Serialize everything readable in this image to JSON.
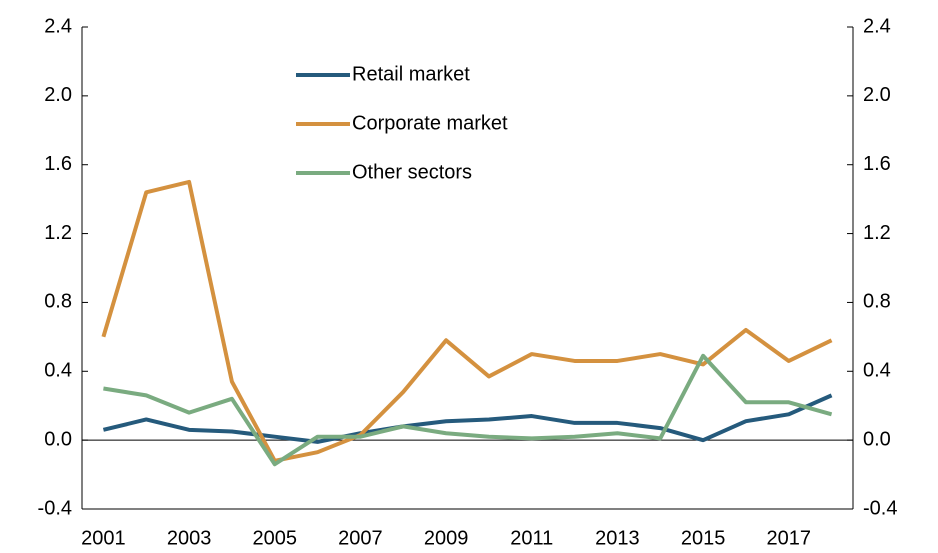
{
  "chart_data": {
    "type": "line",
    "categories": [
      "2001",
      null,
      "2003",
      null,
      "2005",
      null,
      "2007",
      null,
      "2009",
      null,
      "2011",
      null,
      "2013",
      null,
      "2015",
      null,
      "2017",
      null
    ],
    "series": [
      {
        "name": "Retail market",
        "color": "#255a7c",
        "values": [
          0.06,
          0.12,
          0.06,
          0.05,
          0.02,
          -0.01,
          0.04,
          0.08,
          0.11,
          0.12,
          0.14,
          0.1,
          0.1,
          0.07,
          0.0,
          0.11,
          0.15,
          0.26
        ]
      },
      {
        "name": "Corporate market",
        "color": "#d4913f",
        "values": [
          0.6,
          1.44,
          1.5,
          0.34,
          -0.12,
          -0.07,
          0.03,
          0.28,
          0.58,
          0.37,
          0.5,
          0.46,
          0.46,
          0.5,
          0.44,
          0.64,
          0.46,
          0.58
        ]
      },
      {
        "name": "Other sectors",
        "color": "#7aab80",
        "values": [
          0.3,
          0.26,
          0.16,
          0.24,
          -0.14,
          0.02,
          0.02,
          0.08,
          0.04,
          0.02,
          0.01,
          0.02,
          0.04,
          0.01,
          0.49,
          0.22,
          0.22,
          0.15
        ]
      }
    ],
    "ylim": [
      -0.4,
      2.4
    ],
    "yticks": [
      {
        "value": -0.4,
        "label": "-0.4"
      },
      {
        "value": 0,
        "label": "0.0"
      },
      {
        "value": 0.4,
        "label": "0.4"
      },
      {
        "value": 0.8,
        "label": "0.8"
      },
      {
        "value": 1.2,
        "label": "1.2"
      },
      {
        "value": 1.6,
        "label": "1.6"
      },
      {
        "value": 2.0,
        "label": "2.0"
      },
      {
        "value": 2.4,
        "label": "2.4"
      }
    ],
    "y2lim": [
      -0.4,
      2.4
    ],
    "y2ticks": [
      {
        "value": -0.4,
        "label": "-0.4"
      },
      {
        "value": 0,
        "label": "0.0"
      },
      {
        "value": 0.4,
        "label": "0.4"
      },
      {
        "value": 0.8,
        "label": "0.8"
      },
      {
        "value": 1.2,
        "label": "1.2"
      },
      {
        "value": 1.6,
        "label": "1.6"
      },
      {
        "value": 2.0,
        "label": "2.0"
      },
      {
        "value": 2.4,
        "label": "2.4"
      }
    ],
    "legend": "top-left"
  }
}
